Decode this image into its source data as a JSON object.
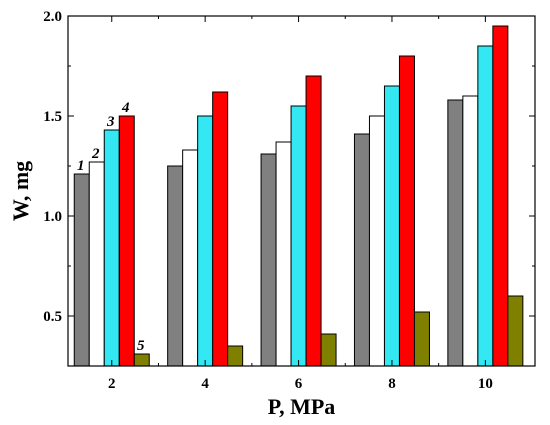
{
  "chart_data": {
    "type": "bar",
    "xlabel": "P, MPa",
    "ylabel": "W, mg",
    "ylim": [
      0.25,
      2.0
    ],
    "y_ticks": [
      0.5,
      1.0,
      1.5,
      2.0
    ],
    "y_tick_labels": [
      "0.5",
      "1.0",
      "1.5",
      "2.0"
    ],
    "categories": [
      "2",
      "4",
      "6",
      "8",
      "10"
    ],
    "grid": false,
    "legend": "none",
    "series": [
      {
        "name": "1",
        "color": "#808080",
        "values": [
          1.21,
          1.25,
          1.31,
          1.41,
          1.58
        ]
      },
      {
        "name": "2",
        "color": "#ffffff",
        "values": [
          1.27,
          1.33,
          1.37,
          1.5,
          1.6
        ]
      },
      {
        "name": "3",
        "color": "#33e8f2",
        "values": [
          1.43,
          1.5,
          1.55,
          1.65,
          1.85
        ]
      },
      {
        "name": "4",
        "color": "#ff0000",
        "values": [
          1.5,
          1.62,
          1.7,
          1.8,
          1.95
        ]
      },
      {
        "name": "5",
        "color": "#808000",
        "values": [
          0.31,
          0.35,
          0.41,
          0.52,
          0.6
        ]
      }
    ]
  }
}
